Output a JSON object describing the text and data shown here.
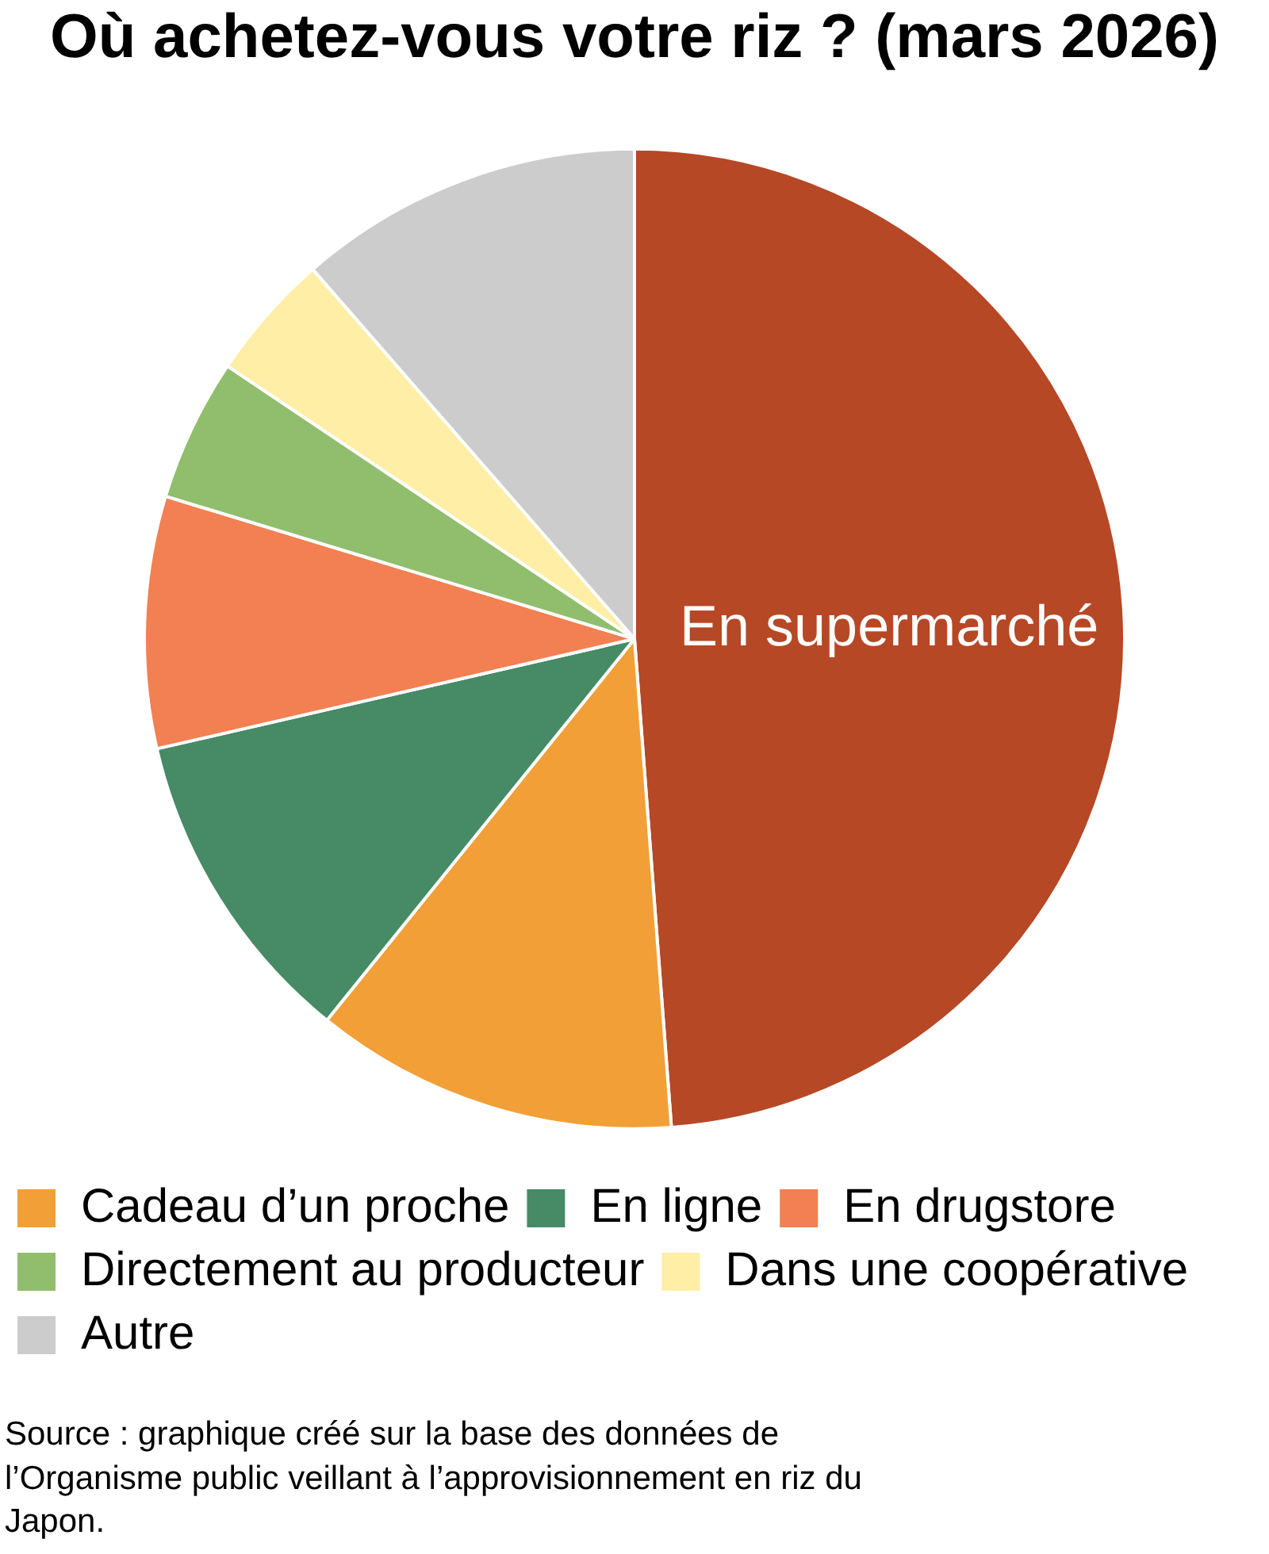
{
  "chart_data": {
    "type": "pie",
    "title": "Où achetez-vous votre riz ? (mars 2026)",
    "categories": [
      "En supermarché",
      "Cadeau d’un proche",
      "En ligne",
      "En drugstore",
      "Directement au producteur",
      "Dans une coopérative",
      "Autre"
    ],
    "values": [
      48.8,
      12.0,
      10.6,
      8.3,
      4.7,
      4.2,
      11.4
    ],
    "colors": [
      "#b64826",
      "#f29f38",
      "#468a66",
      "#f28052",
      "#90be6d",
      "#feeea6",
      "#cccccc"
    ],
    "legend": "bottom",
    "annotations": [
      "Source : graphique créé sur la base des données de l’Organisme public veillant à l’approvisionnement en riz du Japon."
    ]
  }
}
